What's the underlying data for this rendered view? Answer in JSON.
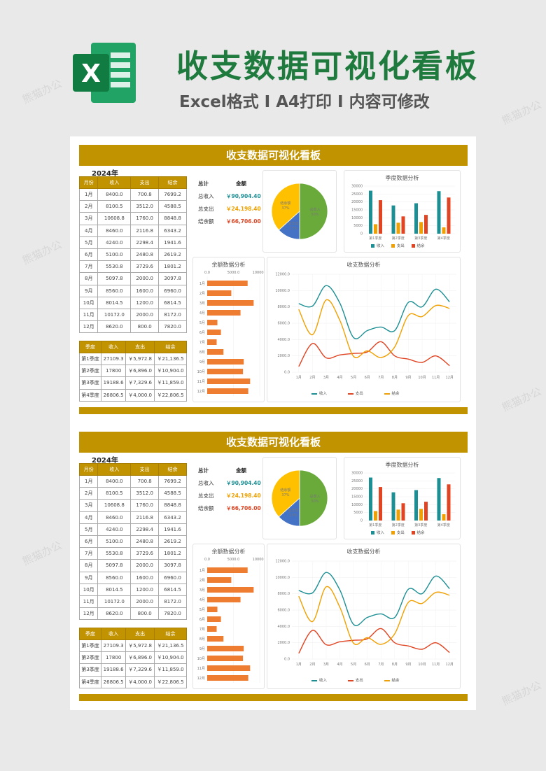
{
  "promo": {
    "title": "收支数据可视化看板",
    "subtitle": "Excel格式 I A4打印 I 内容可修改",
    "logo_letter": "X"
  },
  "watermark": "熊猫办公",
  "dashboard": {
    "title": "收支数据可视化看板",
    "year": "2024年",
    "monthly_table": {
      "headers": [
        "月份",
        "收入",
        "支出",
        "结余"
      ],
      "rows": [
        [
          "1月",
          "8400.0",
          "700.8",
          "7699.2"
        ],
        [
          "2月",
          "8100.5",
          "3512.0",
          "4588.5"
        ],
        [
          "3月",
          "10608.8",
          "1760.0",
          "8848.8"
        ],
        [
          "4月",
          "8460.0",
          "2116.8",
          "6343.2"
        ],
        [
          "5月",
          "4240.0",
          "2298.4",
          "1941.6"
        ],
        [
          "6月",
          "5100.0",
          "2480.8",
          "2619.2"
        ],
        [
          "7月",
          "5530.8",
          "3729.6",
          "1801.2"
        ],
        [
          "8月",
          "5097.8",
          "2000.0",
          "3097.8"
        ],
        [
          "9月",
          "8560.0",
          "1600.0",
          "6960.0"
        ],
        [
          "10月",
          "8014.5",
          "1200.0",
          "6814.5"
        ],
        [
          "11月",
          "10172.0",
          "2000.0",
          "8172.0"
        ],
        [
          "12月",
          "8620.0",
          "800.0",
          "7820.0"
        ]
      ]
    },
    "quarter_table": {
      "headers": [
        "季度",
        "收入",
        "支出",
        "结余"
      ],
      "rows": [
        [
          "第1季度",
          "27109.3",
          "￥5,972.8",
          "￥21,136.5"
        ],
        [
          "第2季度",
          "17800",
          "￥6,896.0",
          "￥10,904.0"
        ],
        [
          "第3季度",
          "19188.6",
          "￥7,329.6",
          "￥11,859.0"
        ],
        [
          "第4季度",
          "26806.5",
          "￥4,000.0",
          "￥22,806.5"
        ]
      ]
    },
    "totals": {
      "header_label": "总计",
      "header_value": "金额",
      "income_label": "总收入",
      "income_value": "￥90,904.40",
      "expense_label": "总支出",
      "expense_value": "￥24,198.40",
      "balance_label": "结余额",
      "balance_value": "￥66,706.00"
    },
    "colors": {
      "gold": "#c29300",
      "teal": "#1c8f94",
      "orange": "#f0a000",
      "red": "#e04422",
      "bar_orange": "#ef7d31",
      "pie_green": "#6aaa3a",
      "pie_blue": "#4472c4",
      "pie_yellow": "#ffc000"
    }
  },
  "chart_data": [
    {
      "type": "pie",
      "labels": [
        "总收入",
        "总支出",
        "结余额"
      ],
      "percent_labels": [
        "50%",
        "13%",
        "37%"
      ],
      "values": [
        90904.4,
        24198.4,
        66706.0
      ]
    },
    {
      "type": "bar",
      "title": "季度数据分析",
      "categories": [
        "第1季度",
        "第2季度",
        "第3季度",
        "第4季度"
      ],
      "ylim": [
        0,
        30000
      ],
      "yticks": [
        "0",
        "5000",
        "10000",
        "15000",
        "20000",
        "25000",
        "30000"
      ],
      "series": [
        {
          "name": "收入",
          "values": [
            27109.3,
            17800,
            19188.6,
            26806.5
          ]
        },
        {
          "name": "支出",
          "values": [
            5972.8,
            6896.0,
            7329.6,
            4000.0
          ]
        },
        {
          "name": "结余",
          "values": [
            21136.5,
            10904.0,
            11859.0,
            22806.5
          ]
        }
      ]
    },
    {
      "type": "bar",
      "orientation": "horizontal",
      "title": "余额数据分析",
      "categories": [
        "1月",
        "2月",
        "3月",
        "4月",
        "5月",
        "6月",
        "7月",
        "8月",
        "9月",
        "10月",
        "11月",
        "12月"
      ],
      "xticks": [
        "0.0",
        "5000.0",
        "10000.0"
      ],
      "xlim": [
        0,
        10000
      ],
      "values": [
        7699.2,
        4588.5,
        8848.8,
        6343.2,
        1941.6,
        2619.2,
        1801.2,
        3097.8,
        6960.0,
        6814.5,
        8172.0,
        7820.0
      ]
    },
    {
      "type": "line",
      "title": "收支数据分析",
      "categories": [
        "1月",
        "2月",
        "3月",
        "4月",
        "5月",
        "6月",
        "7月",
        "8月",
        "9月",
        "10月",
        "11月",
        "12月"
      ],
      "ylim": [
        0,
        12000
      ],
      "yticks": [
        "0.0",
        "2000.0",
        "4000.0",
        "6000.0",
        "8000.0",
        "10000.0",
        "12000.0"
      ],
      "series": [
        {
          "name": "收入",
          "values": [
            8400.0,
            8100.5,
            10608.8,
            8460.0,
            4240.0,
            5100.0,
            5530.8,
            5097.8,
            8560.0,
            8014.5,
            10172.0,
            8620.0
          ]
        },
        {
          "name": "支出",
          "values": [
            700.8,
            3512.0,
            1760.0,
            2116.8,
            2298.4,
            2480.8,
            3729.6,
            2000.0,
            1600.0,
            1200.0,
            2000.0,
            800.0
          ]
        },
        {
          "name": "结余",
          "values": [
            7699.2,
            4588.5,
            8848.8,
            6343.2,
            1941.6,
            2619.2,
            1801.2,
            3097.8,
            6960.0,
            6814.5,
            8172.0,
            7820.0
          ]
        }
      ]
    }
  ]
}
